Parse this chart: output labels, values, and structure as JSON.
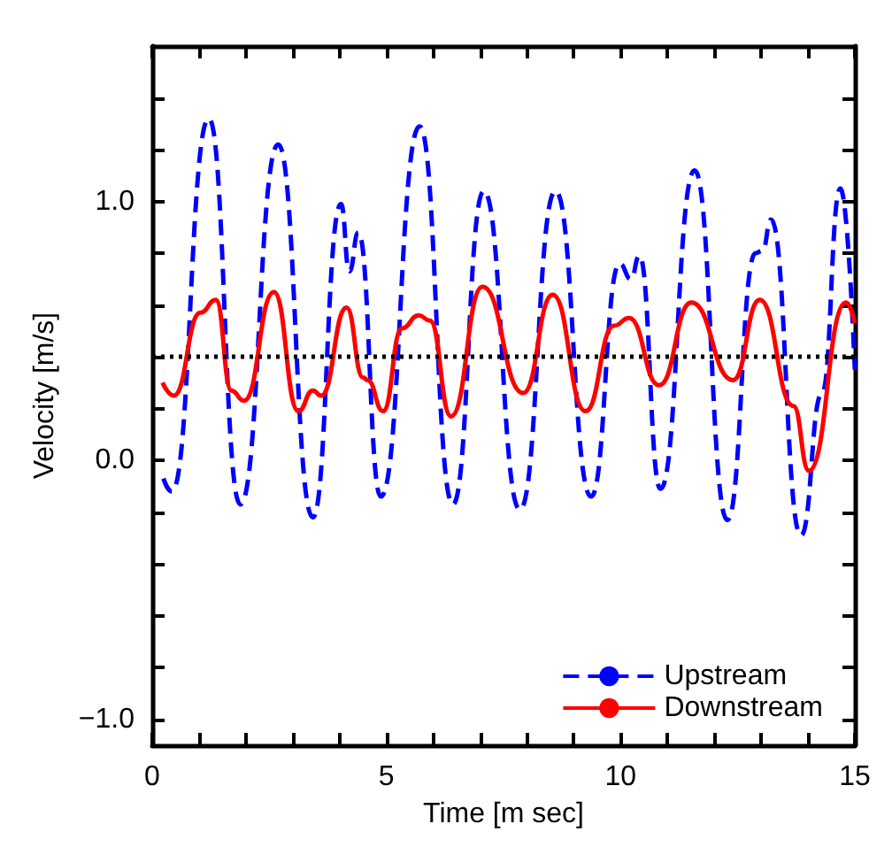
{
  "chart_data": {
    "type": "line",
    "xlabel": "Time [m sec]",
    "ylabel": "Velocity [m/s]",
    "xlim": [
      0,
      15
    ],
    "ylim": [
      -1.1,
      1.6
    ],
    "xticks": [
      0,
      {
        "value": 1,
        "label": null
      },
      {
        "value": 2,
        "label": null
      },
      {
        "value": 3,
        "label": null
      },
      {
        "value": 4,
        "label": null
      },
      5,
      {
        "value": 6,
        "label": null
      },
      {
        "value": 7,
        "label": null
      },
      {
        "value": 8,
        "label": null
      },
      {
        "value": 9,
        "label": null
      },
      10,
      {
        "value": 11,
        "label": null
      },
      {
        "value": 12,
        "label": null
      },
      {
        "value": 13,
        "label": null
      },
      {
        "value": 14,
        "label": null
      },
      15
    ],
    "yticks": [
      {
        "value": -1,
        "label": "−1.0"
      },
      {
        "value": -0.8,
        "label": null
      },
      {
        "value": -0.6,
        "label": null
      },
      {
        "value": -0.4,
        "label": null
      },
      {
        "value": -0.2,
        "label": null
      },
      {
        "value": 0,
        "label": "0.0"
      },
      {
        "value": 0.2,
        "label": null
      },
      {
        "value": 0.4,
        "label": null
      },
      {
        "value": 0.6,
        "label": null
      },
      {
        "value": 0.8,
        "label": null
      },
      {
        "value": 1,
        "label": "1.0"
      },
      {
        "value": 1.2,
        "label": null
      },
      {
        "value": 1.4,
        "label": null
      }
    ],
    "grid": false,
    "legend": "bottom right",
    "marker": "none",
    "series": [
      {
        "name": "Upstream",
        "color": "#0000ff",
        "line_style": "dashed",
        "x": [
          0.24,
          0.42,
          1.21,
          1.88,
          2.69,
          3.43,
          4.03,
          4.21,
          4.4,
          4.88,
          5.71,
          6.42,
          7.08,
          7.85,
          8.61,
          9.37,
          9.98,
          10.22,
          10.4,
          10.85,
          11.58,
          12.28,
          12.88,
          13.03,
          13.21,
          13.85,
          14.3,
          14.69,
          15
        ],
        "values": [
          -0.07,
          -0.12,
          1.32,
          -0.17,
          1.22,
          -0.22,
          0.99,
          0.73,
          0.88,
          -0.14,
          1.29,
          -0.17,
          1.04,
          -0.19,
          1.04,
          -0.14,
          0.76,
          0.7,
          0.79,
          -0.11,
          1.12,
          -0.23,
          0.8,
          0.81,
          0.93,
          -0.29,
          0.26,
          1.05,
          0.35
        ]
      },
      {
        "name": "Downstream",
        "color": "#ff0000",
        "line_style": "solid",
        "x": [
          0.22,
          0.46,
          1.03,
          1.36,
          1.69,
          1.96,
          2.6,
          3.12,
          3.43,
          3.61,
          4.15,
          4.5,
          4.6,
          4.93,
          5.33,
          5.69,
          5.93,
          6.38,
          7.05,
          7.92,
          8.55,
          9.25,
          9.86,
          10.18,
          10.82,
          11.51,
          12.4,
          12.97,
          13.69,
          14.02,
          14.81,
          15
        ],
        "values": [
          0.3,
          0.25,
          0.57,
          0.62,
          0.27,
          0.23,
          0.65,
          0.19,
          0.27,
          0.25,
          0.59,
          0.32,
          0.31,
          0.19,
          0.51,
          0.56,
          0.54,
          0.17,
          0.67,
          0.26,
          0.64,
          0.19,
          0.52,
          0.55,
          0.29,
          0.61,
          0.31,
          0.62,
          0.21,
          -0.04,
          0.61,
          0.53
        ]
      }
    ],
    "ref_lines": [
      {
        "axis": "y",
        "value": 0.4,
        "color": "#000000",
        "line_style": "dotted"
      }
    ]
  }
}
